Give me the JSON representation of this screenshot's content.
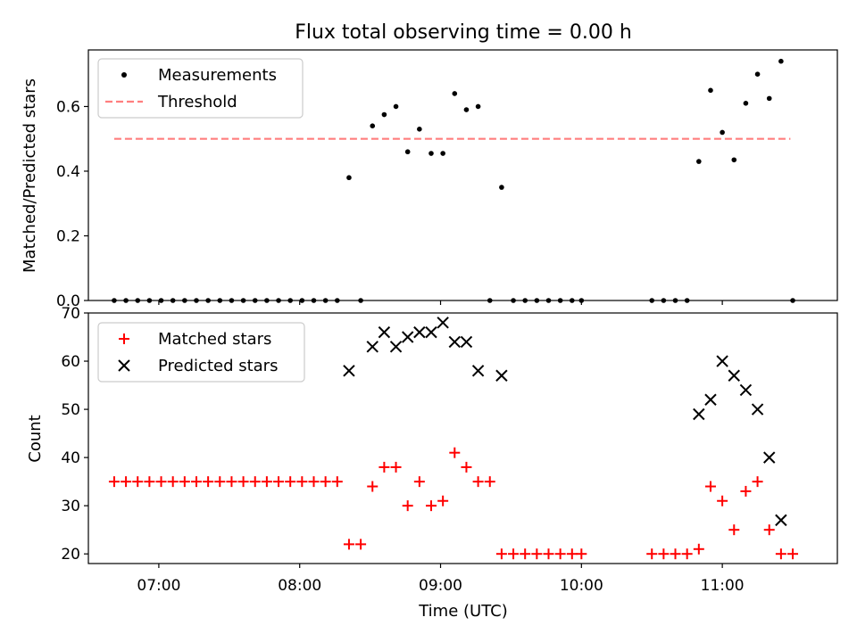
{
  "title": "Flux total observing time = 0.00 h",
  "chart_data": [
    {
      "type": "scatter",
      "ylabel": "Matched/Predicted stars",
      "xlabel": "",
      "ylim": [
        0,
        0.775
      ],
      "y_ticks": [
        0.0,
        0.2,
        0.4,
        0.6
      ],
      "y_tick_labels": [
        "0.0",
        "0.2",
        "0.4",
        "0.6"
      ],
      "legend": {
        "position": "top-left",
        "entries": [
          "Measurements",
          "Threshold"
        ]
      },
      "threshold": {
        "name": "Threshold",
        "value": 0.5,
        "x_start": "06:41",
        "x_end": "11:29",
        "color": "#ff7f7f"
      },
      "series": [
        {
          "name": "Measurements",
          "color": "#000000",
          "marker": "dot",
          "points": [
            [
              "06:41",
              0
            ],
            [
              "06:46",
              0
            ],
            [
              "06:51",
              0
            ],
            [
              "06:56",
              0
            ],
            [
              "07:01",
              0
            ],
            [
              "07:06",
              0
            ],
            [
              "07:11",
              0
            ],
            [
              "07:16",
              0
            ],
            [
              "07:21",
              0
            ],
            [
              "07:26",
              0
            ],
            [
              "07:31",
              0
            ],
            [
              "07:36",
              0
            ],
            [
              "07:41",
              0
            ],
            [
              "07:46",
              0
            ],
            [
              "07:51",
              0
            ],
            [
              "07:56",
              0
            ],
            [
              "08:01",
              0
            ],
            [
              "08:06",
              0
            ],
            [
              "08:11",
              0
            ],
            [
              "08:16",
              0
            ],
            [
              "08:21",
              0.38
            ],
            [
              "08:26",
              0
            ],
            [
              "08:31",
              0.54
            ],
            [
              "08:36",
              0.575
            ],
            [
              "08:41",
              0.6
            ],
            [
              "08:46",
              0.46
            ],
            [
              "08:51",
              0.53
            ],
            [
              "08:56",
              0.455
            ],
            [
              "09:01",
              0.455
            ],
            [
              "09:06",
              0.64
            ],
            [
              "09:11",
              0.59
            ],
            [
              "09:16",
              0.6
            ],
            [
              "09:21",
              0
            ],
            [
              "09:26",
              0.35
            ],
            [
              "09:31",
              0
            ],
            [
              "09:36",
              0
            ],
            [
              "09:41",
              0
            ],
            [
              "09:46",
              0
            ],
            [
              "09:51",
              0
            ],
            [
              "09:56",
              0
            ],
            [
              "10:00",
              0
            ],
            [
              "10:30",
              0
            ],
            [
              "10:35",
              0
            ],
            [
              "10:40",
              0
            ],
            [
              "10:45",
              0
            ],
            [
              "10:50",
              0.43
            ],
            [
              "10:55",
              0.65
            ],
            [
              "11:00",
              0.52
            ],
            [
              "11:05",
              0.435
            ],
            [
              "11:10",
              0.61
            ],
            [
              "11:15",
              0.7
            ],
            [
              "11:20",
              0.625
            ],
            [
              "11:25",
              0.74
            ],
            [
              "11:30",
              0
            ]
          ]
        }
      ]
    },
    {
      "type": "scatter",
      "ylabel": "Count",
      "xlabel": "Time (UTC)",
      "ylim": [
        18,
        70
      ],
      "y_ticks": [
        20,
        30,
        40,
        50,
        60,
        70
      ],
      "y_tick_labels": [
        "20",
        "30",
        "40",
        "50",
        "60",
        "70"
      ],
      "x_ticks": [
        "07:00",
        "08:00",
        "09:00",
        "10:00",
        "11:00"
      ],
      "xlim": [
        "06:30",
        "11:49"
      ],
      "legend": {
        "position": "top-left",
        "entries": [
          "Matched stars",
          "Predicted stars"
        ]
      },
      "series": [
        {
          "name": "Matched stars",
          "color": "#ff0000",
          "marker": "plus",
          "points": [
            [
              "06:41",
              35
            ],
            [
              "06:46",
              35
            ],
            [
              "06:51",
              35
            ],
            [
              "06:56",
              35
            ],
            [
              "07:01",
              35
            ],
            [
              "07:06",
              35
            ],
            [
              "07:11",
              35
            ],
            [
              "07:16",
              35
            ],
            [
              "07:21",
              35
            ],
            [
              "07:26",
              35
            ],
            [
              "07:31",
              35
            ],
            [
              "07:36",
              35
            ],
            [
              "07:41",
              35
            ],
            [
              "07:46",
              35
            ],
            [
              "07:51",
              35
            ],
            [
              "07:56",
              35
            ],
            [
              "08:01",
              35
            ],
            [
              "08:06",
              35
            ],
            [
              "08:11",
              35
            ],
            [
              "08:16",
              35
            ],
            [
              "08:21",
              22
            ],
            [
              "08:26",
              22
            ],
            [
              "08:31",
              34
            ],
            [
              "08:36",
              38
            ],
            [
              "08:41",
              38
            ],
            [
              "08:46",
              30
            ],
            [
              "08:51",
              35
            ],
            [
              "08:56",
              30
            ],
            [
              "09:01",
              31
            ],
            [
              "09:06",
              41
            ],
            [
              "09:11",
              38
            ],
            [
              "09:16",
              35
            ],
            [
              "09:21",
              35
            ],
            [
              "09:26",
              20
            ],
            [
              "09:31",
              20
            ],
            [
              "09:36",
              20
            ],
            [
              "09:41",
              20
            ],
            [
              "09:46",
              20
            ],
            [
              "09:51",
              20
            ],
            [
              "09:56",
              20
            ],
            [
              "10:00",
              20
            ],
            [
              "10:30",
              20
            ],
            [
              "10:35",
              20
            ],
            [
              "10:40",
              20
            ],
            [
              "10:45",
              20
            ],
            [
              "10:50",
              21
            ],
            [
              "10:55",
              34
            ],
            [
              "11:00",
              31
            ],
            [
              "11:05",
              25
            ],
            [
              "11:10",
              33
            ],
            [
              "11:15",
              35
            ],
            [
              "11:20",
              25
            ],
            [
              "11:25",
              20
            ],
            [
              "11:30",
              20
            ]
          ]
        },
        {
          "name": "Predicted stars",
          "color": "#000000",
          "marker": "x",
          "points": [
            [
              "08:21",
              58
            ],
            [
              "08:31",
              63
            ],
            [
              "08:36",
              66
            ],
            [
              "08:41",
              63
            ],
            [
              "08:46",
              65
            ],
            [
              "08:51",
              66
            ],
            [
              "08:56",
              66
            ],
            [
              "09:01",
              68
            ],
            [
              "09:06",
              64
            ],
            [
              "09:11",
              64
            ],
            [
              "09:16",
              58
            ],
            [
              "09:26",
              57
            ],
            [
              "10:50",
              49
            ],
            [
              "10:55",
              52
            ],
            [
              "11:00",
              60
            ],
            [
              "11:05",
              57
            ],
            [
              "11:10",
              54
            ],
            [
              "11:15",
              50
            ],
            [
              "11:20",
              40
            ],
            [
              "11:25",
              27
            ]
          ]
        }
      ]
    }
  ]
}
